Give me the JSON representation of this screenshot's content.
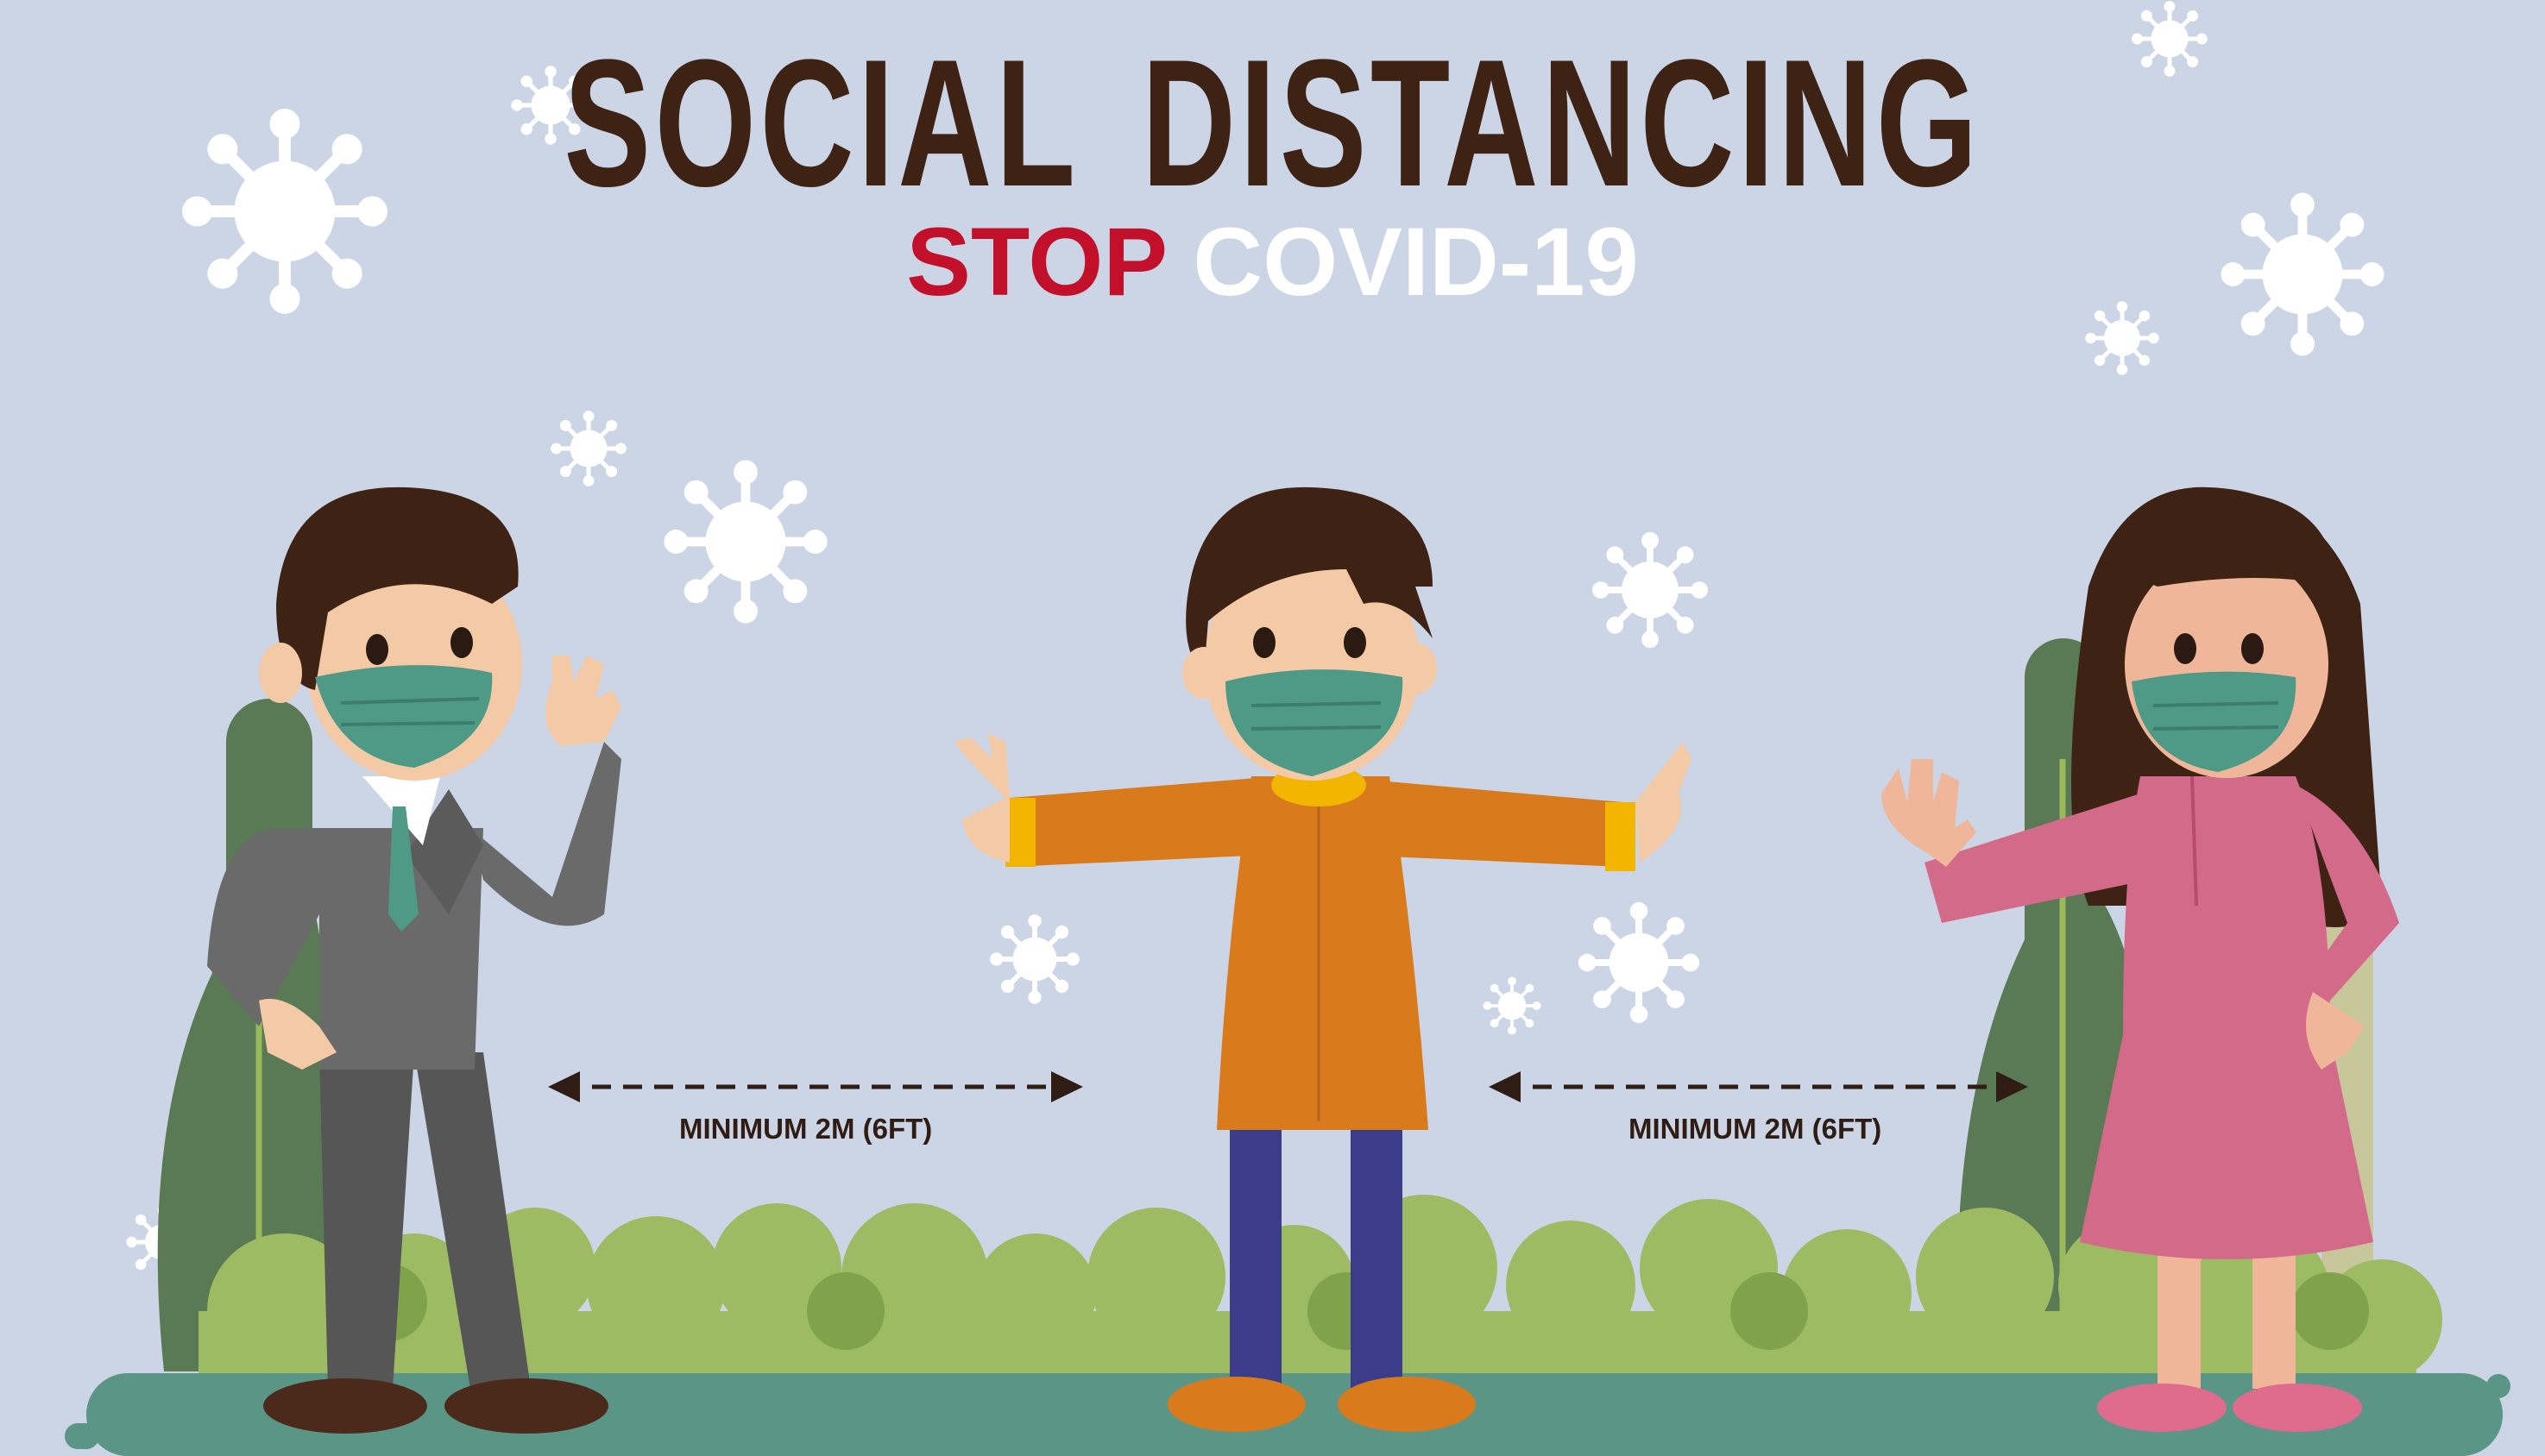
{
  "title": "SOCIAL DISTANCING",
  "subtitle_stop": "STOP",
  "subtitle_covid": "COVID-19",
  "distance_labels": [
    "MINIMUM 2M (6FT)",
    "MINIMUM 2M (6FT)"
  ],
  "colors": {
    "background": "#cbd5e6",
    "title": "#3e2315",
    "stop": "#c2102b",
    "mask": "#4e9a87",
    "ground": "#5b9585"
  }
}
